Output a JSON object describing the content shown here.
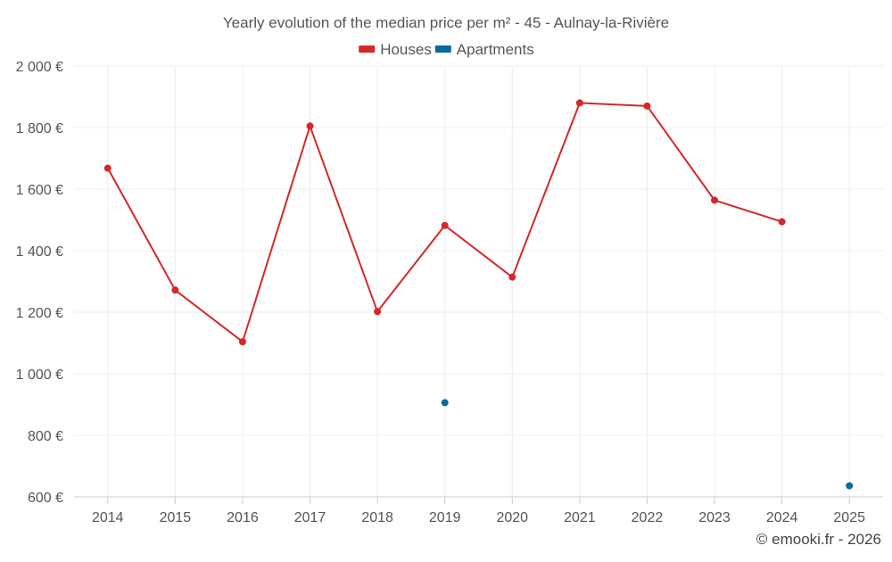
{
  "chart_data": {
    "type": "line",
    "title": "Yearly evolution of the median price per m² - 45 - Aulnay-la-Rivière",
    "xlabel": "",
    "ylabel": "",
    "categories": [
      "2014",
      "2015",
      "2016",
      "2017",
      "2018",
      "2019",
      "2020",
      "2021",
      "2022",
      "2023",
      "2024",
      "2025"
    ],
    "ylim": [
      600,
      2000
    ],
    "yticks": [
      600,
      800,
      1000,
      1200,
      1400,
      1600,
      1800,
      2000
    ],
    "ytick_labels": [
      "600 €",
      "800 €",
      "1 000 €",
      "1 200 €",
      "1 400 €",
      "1 600 €",
      "1 800 €",
      "2 000 €"
    ],
    "grid": true,
    "legend_position": "top-center",
    "series": [
      {
        "name": "Houses",
        "color": "#d62728",
        "values": [
          1668,
          1272,
          1104,
          1805,
          1202,
          1482,
          1314,
          1880,
          1870,
          1564,
          1494,
          null
        ]
      },
      {
        "name": "Apartments",
        "color": "#0b6a9c",
        "values": [
          null,
          null,
          null,
          null,
          null,
          906,
          null,
          null,
          null,
          null,
          null,
          636
        ]
      }
    ]
  },
  "credit": "© emooki.fr - 2026"
}
